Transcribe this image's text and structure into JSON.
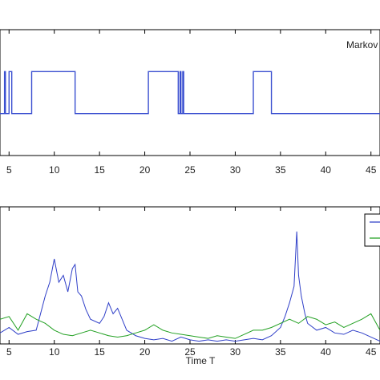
{
  "chart_data": [
    {
      "type": "line",
      "title": "",
      "xlabel": "",
      "ylabel": "",
      "annotation": "Markov",
      "xlim": [
        4,
        46
      ],
      "ylim": [
        0,
        3
      ],
      "xticks": [
        5,
        10,
        15,
        20,
        25,
        30,
        35,
        40,
        45
      ],
      "grid": false,
      "series": [
        {
          "color": "#3a4fd0",
          "x": [
            4,
            4.5,
            4.5,
            4.6,
            4.6,
            5.0,
            5.0,
            5.3,
            5.3,
            7.5,
            7.5,
            12.3,
            12.3,
            20.4,
            20.4,
            23.7,
            23.7,
            23.9,
            23.9,
            24.0,
            24.0,
            24.2,
            24.2,
            24.3,
            24.3,
            32.0,
            32.0,
            34.0,
            34.0,
            46
          ],
          "values": [
            1,
            1,
            2,
            2,
            1,
            1,
            2,
            2,
            1,
            1,
            2,
            2,
            1,
            1,
            2,
            2,
            1,
            1,
            2,
            2,
            1,
            1,
            2,
            2,
            1,
            1,
            2,
            2,
            1,
            1
          ]
        }
      ]
    },
    {
      "type": "line",
      "title": "",
      "xlabel": "Time T",
      "ylabel": "",
      "xlim": [
        4,
        46
      ],
      "ylim": [
        0,
        1
      ],
      "xticks": [
        5,
        10,
        15,
        20,
        25,
        30,
        35,
        40,
        45
      ],
      "legend": "top-right",
      "grid": false,
      "series": [
        {
          "color": "#2f3fc8",
          "x": [
            4,
            5,
            6,
            7,
            8,
            9,
            9.5,
            10,
            10.5,
            11,
            11.5,
            12,
            12.3,
            12.6,
            13,
            13.5,
            14,
            15,
            15.5,
            16,
            16.5,
            17,
            18,
            19,
            20,
            21,
            22,
            23,
            24,
            25,
            26,
            27,
            28,
            29,
            30,
            31,
            32,
            33,
            34,
            35,
            35.5,
            36,
            36.5,
            36.8,
            37,
            37.3,
            37.7,
            38,
            39,
            40,
            41,
            42,
            43,
            44,
            45,
            46
          ],
          "values": [
            0.08,
            0.12,
            0.07,
            0.09,
            0.1,
            0.35,
            0.45,
            0.62,
            0.45,
            0.5,
            0.38,
            0.55,
            0.58,
            0.38,
            0.35,
            0.25,
            0.18,
            0.15,
            0.2,
            0.3,
            0.22,
            0.26,
            0.1,
            0.06,
            0.04,
            0.03,
            0.04,
            0.02,
            0.05,
            0.03,
            0.02,
            0.03,
            0.02,
            0.03,
            0.02,
            0.03,
            0.04,
            0.03,
            0.06,
            0.12,
            0.2,
            0.3,
            0.42,
            0.82,
            0.5,
            0.35,
            0.22,
            0.15,
            0.1,
            0.12,
            0.08,
            0.07,
            0.1,
            0.08,
            0.05,
            0.02
          ]
        },
        {
          "color": "#22a022",
          "x": [
            4,
            5,
            6,
            7,
            8,
            9,
            10,
            11,
            12,
            13,
            14,
            15,
            16,
            17,
            18,
            19,
            20,
            21,
            22,
            23,
            24,
            25,
            26,
            27,
            28,
            29,
            30,
            31,
            32,
            33,
            34,
            35,
            36,
            37,
            38,
            39,
            40,
            41,
            42,
            43,
            44,
            45,
            46
          ],
          "values": [
            0.18,
            0.2,
            0.1,
            0.22,
            0.18,
            0.15,
            0.1,
            0.07,
            0.06,
            0.08,
            0.1,
            0.08,
            0.06,
            0.05,
            0.06,
            0.08,
            0.1,
            0.14,
            0.1,
            0.08,
            0.07,
            0.06,
            0.05,
            0.04,
            0.06,
            0.05,
            0.04,
            0.07,
            0.1,
            0.1,
            0.12,
            0.15,
            0.18,
            0.15,
            0.2,
            0.18,
            0.14,
            0.16,
            0.12,
            0.15,
            0.18,
            0.22,
            0.1
          ]
        }
      ]
    }
  ]
}
